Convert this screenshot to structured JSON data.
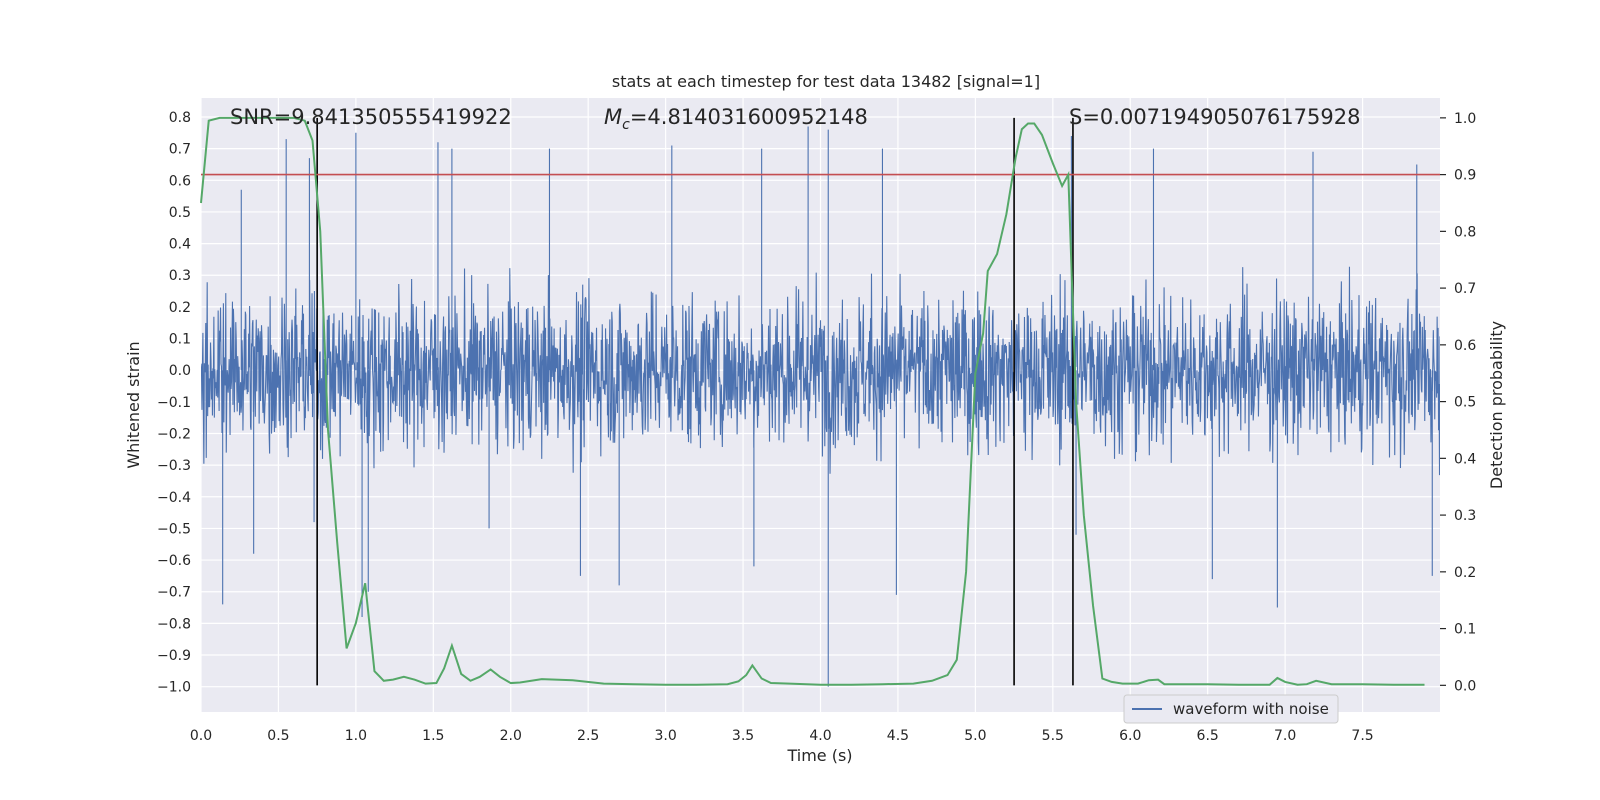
{
  "chart_data": {
    "type": "line",
    "title": "stats at each timestep for test data 13482 [signal=1]",
    "xlabel": "Time (s)",
    "ylabel_left": "Whitened strain",
    "ylabel_right": "Detection probability",
    "xlim": [
      0.0,
      8.0
    ],
    "ylim_left": [
      -1.08,
      0.86
    ],
    "ylim_right": [
      -0.047,
      1.035
    ],
    "x_ticks": [
      "0.0",
      "0.5",
      "1.0",
      "1.5",
      "2.0",
      "2.5",
      "3.0",
      "3.5",
      "4.0",
      "4.5",
      "5.0",
      "5.5",
      "6.0",
      "6.5",
      "7.0",
      "7.5"
    ],
    "y_ticks_left": [
      "0.8",
      "0.7",
      "0.6",
      "0.5",
      "0.4",
      "0.3",
      "0.2",
      "0.1",
      "0.0",
      "−0.1",
      "−0.2",
      "−0.3",
      "−0.4",
      "−0.5",
      "−0.6",
      "−0.7",
      "−0.8",
      "−0.9",
      "−1.0"
    ],
    "y_ticks_right": [
      "0.0",
      "0.1",
      "0.2",
      "0.3",
      "0.4",
      "0.5",
      "0.6",
      "0.7",
      "0.8",
      "0.9",
      "1.0"
    ],
    "grid": true,
    "legend_position": "lower-right",
    "annotations": {
      "snr": "SNR=9.841350555419922",
      "mc_symbol": "M",
      "mc_sub": "c",
      "mc_value": "=4.814031600952148",
      "s": "S=0.007194905076175928"
    },
    "series": [
      {
        "name": "waveform with noise",
        "color": "#4c72b0",
        "axis": "left",
        "description_free_noise": true,
        "spikes": [
          {
            "x": 0.14,
            "y": -0.74
          },
          {
            "x": 0.26,
            "y": 0.57
          },
          {
            "x": 0.34,
            "y": -0.58
          },
          {
            "x": 0.55,
            "y": 0.73
          },
          {
            "x": 0.7,
            "y": 0.67
          },
          {
            "x": 0.73,
            "y": -0.48
          },
          {
            "x": 1.0,
            "y": 0.75
          },
          {
            "x": 1.04,
            "y": -0.78
          },
          {
            "x": 1.08,
            "y": -0.7
          },
          {
            "x": 1.53,
            "y": 0.72
          },
          {
            "x": 1.62,
            "y": 0.7
          },
          {
            "x": 1.86,
            "y": -0.5
          },
          {
            "x": 2.25,
            "y": 0.7
          },
          {
            "x": 2.45,
            "y": -0.65
          },
          {
            "x": 2.7,
            "y": -0.68
          },
          {
            "x": 3.04,
            "y": 0.71
          },
          {
            "x": 3.57,
            "y": -0.62
          },
          {
            "x": 3.62,
            "y": 0.7
          },
          {
            "x": 3.92,
            "y": 0.77
          },
          {
            "x": 4.05,
            "y": 0.76
          },
          {
            "x": 4.05,
            "y": -1.0
          },
          {
            "x": 4.4,
            "y": 0.7
          },
          {
            "x": 4.49,
            "y": -0.71
          },
          {
            "x": 5.25,
            "y": -0.86
          },
          {
            "x": 5.62,
            "y": 0.74
          },
          {
            "x": 5.65,
            "y": -0.52
          },
          {
            "x": 6.15,
            "y": 0.7
          },
          {
            "x": 6.53,
            "y": -0.66
          },
          {
            "x": 6.95,
            "y": -0.75
          },
          {
            "x": 7.18,
            "y": 0.69
          },
          {
            "x": 7.85,
            "y": 0.65
          },
          {
            "x": 7.95,
            "y": -0.65
          }
        ]
      },
      {
        "name": "",
        "color": "#55a868",
        "axis": "right",
        "x": [
          0.0,
          0.05,
          0.12,
          0.2,
          0.3,
          0.45,
          0.6,
          0.67,
          0.72,
          0.77,
          0.82,
          0.88,
          0.94,
          1.0,
          1.06,
          1.12,
          1.18,
          1.24,
          1.31,
          1.38,
          1.45,
          1.52,
          1.57,
          1.62,
          1.68,
          1.74,
          1.8,
          1.87,
          1.93,
          2.0,
          2.06,
          2.2,
          2.4,
          2.6,
          2.8,
          3.0,
          3.2,
          3.4,
          3.47,
          3.52,
          3.56,
          3.62,
          3.68,
          3.8,
          4.0,
          4.2,
          4.4,
          4.6,
          4.72,
          4.82,
          4.88,
          4.94,
          5.0,
          5.05,
          5.08,
          5.14,
          5.2,
          5.26,
          5.3,
          5.34,
          5.38,
          5.43,
          5.5,
          5.56,
          5.6,
          5.65,
          5.7,
          5.76,
          5.82,
          5.88,
          5.95,
          6.05,
          6.12,
          6.18,
          6.22,
          6.3,
          6.5,
          6.7,
          6.9,
          6.95,
          7.0,
          7.08,
          7.14,
          7.2,
          7.3,
          7.5,
          7.7,
          7.9
        ],
        "values": [
          0.85,
          0.995,
          1.0,
          1.0,
          1.0,
          1.0,
          1.0,
          0.995,
          0.96,
          0.8,
          0.45,
          0.25,
          0.065,
          0.11,
          0.18,
          0.025,
          0.008,
          0.01,
          0.015,
          0.01,
          0.003,
          0.004,
          0.03,
          0.07,
          0.02,
          0.008,
          0.015,
          0.028,
          0.015,
          0.004,
          0.005,
          0.011,
          0.009,
          0.003,
          0.002,
          0.001,
          0.001,
          0.002,
          0.007,
          0.018,
          0.035,
          0.012,
          0.004,
          0.003,
          0.001,
          0.001,
          0.002,
          0.003,
          0.008,
          0.018,
          0.045,
          0.2,
          0.55,
          0.62,
          0.73,
          0.76,
          0.83,
          0.93,
          0.98,
          0.99,
          0.99,
          0.97,
          0.92,
          0.88,
          0.9,
          0.5,
          0.3,
          0.14,
          0.012,
          0.006,
          0.003,
          0.003,
          0.009,
          0.01,
          0.002,
          0.002,
          0.002,
          0.001,
          0.001,
          0.013,
          0.006,
          0.001,
          0.002,
          0.008,
          0.002,
          0.002,
          0.001,
          0.001
        ]
      },
      {
        "name": "",
        "color": "#c44e52",
        "axis": "right",
        "type": "hline",
        "y": 0.9
      }
    ],
    "vlines": [
      {
        "x": 0.75,
        "color": "#000000"
      },
      {
        "x": 5.25,
        "color": "#000000"
      },
      {
        "x": 5.63,
        "color": "#000000"
      }
    ],
    "legend": [
      {
        "label": "waveform with noise",
        "color": "#4c72b0"
      }
    ],
    "colors": {
      "axes_bg": "#eaeaf2",
      "grid": "#ffffff",
      "text": "#262626"
    }
  }
}
